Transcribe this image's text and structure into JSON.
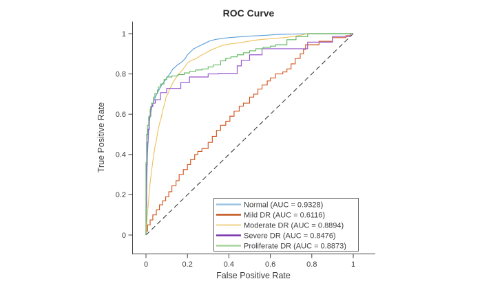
{
  "chart": {
    "title": "ROC Curve",
    "xlabel": "False Positive Rate",
    "ylabel": "True Positive Rate"
  },
  "axes": {
    "x_tick_labels": [
      "0",
      "0.2",
      "0.4",
      "0.6",
      "0.8",
      "1"
    ],
    "y_tick_labels": [
      "0",
      "0.2",
      "0.4",
      "0.6",
      "0.8",
      "1"
    ],
    "spine_color": "#404040",
    "tick_text_color": "#3d3d3d"
  },
  "legend": {
    "border_color": "#545454",
    "background": "#ffffff",
    "entries": [
      "Normal (AUC = 0.9328)",
      "Mild DR (AUC = 0.6116)",
      "Moderate DR (AUC = 0.8894)",
      "Severe DR (AUC = 0.8476)",
      "Proliferate DR (AUC = 0.8873)"
    ]
  },
  "chart_data": {
    "type": "line",
    "title": "ROC Curve",
    "xlabel": "False Positive Rate",
    "ylabel": "True Positive Rate",
    "xticks": [
      0,
      0.2,
      0.4,
      0.6,
      0.8,
      1
    ],
    "yticks": [
      0,
      0.2,
      0.4,
      0.6,
      0.8,
      1
    ],
    "xlim": [
      -0.063,
      1.107
    ],
    "ylim": [
      -0.096,
      1.06
    ],
    "grid": false,
    "legend_position": "inside lower right",
    "reference_line": {
      "name": "chance-diagonal",
      "from": [
        0,
        0
      ],
      "to": [
        1,
        1
      ],
      "style": "dashed",
      "color": "#3c3c3c"
    },
    "series": [
      {
        "name": "Normal",
        "auc": 0.9328,
        "legend_label": "Normal (AUC = 0.9328)",
        "color": "#5c9fd8",
        "legend_color": "#9dc3e1",
        "points": [
          [
            0,
            0
          ],
          [
            0.002,
            0.1
          ],
          [
            0.003,
            0.22
          ],
          [
            0.005,
            0.32
          ],
          [
            0.007,
            0.4
          ],
          [
            0.01,
            0.46
          ],
          [
            0.013,
            0.52
          ],
          [
            0.016,
            0.56
          ],
          [
            0.02,
            0.59
          ],
          [
            0.027,
            0.63
          ],
          [
            0.035,
            0.655
          ],
          [
            0.045,
            0.685
          ],
          [
            0.055,
            0.705
          ],
          [
            0.065,
            0.725
          ],
          [
            0.077,
            0.748
          ],
          [
            0.09,
            0.765
          ],
          [
            0.1,
            0.78
          ],
          [
            0.115,
            0.8
          ],
          [
            0.13,
            0.825
          ],
          [
            0.15,
            0.843
          ],
          [
            0.176,
            0.862
          ],
          [
            0.19,
            0.878
          ],
          [
            0.2,
            0.895
          ],
          [
            0.215,
            0.91
          ],
          [
            0.23,
            0.925
          ],
          [
            0.25,
            0.935
          ],
          [
            0.27,
            0.945
          ],
          [
            0.29,
            0.955
          ],
          [
            0.31,
            0.965
          ],
          [
            0.34,
            0.972
          ],
          [
            0.38,
            0.978
          ],
          [
            0.42,
            0.982
          ],
          [
            0.46,
            0.985
          ],
          [
            0.5,
            0.988
          ],
          [
            0.54,
            0.99
          ],
          [
            0.58,
            0.992
          ],
          [
            0.62,
            0.995
          ],
          [
            0.66,
            0.997
          ],
          [
            0.7,
            0.998
          ],
          [
            0.75,
            0.999
          ],
          [
            0.8,
            1.0
          ],
          [
            1,
            1
          ]
        ]
      },
      {
        "name": "Mild DR",
        "auc": 0.6116,
        "legend_label": "Mild DR (AUC = 0.6116)",
        "color": "#d2571e",
        "legend_color": "#c4551c",
        "points": [
          [
            0,
            0
          ],
          [
            0,
            0.02
          ],
          [
            0.008,
            0.02
          ],
          [
            0.008,
            0.05
          ],
          [
            0.02,
            0.05
          ],
          [
            0.02,
            0.075
          ],
          [
            0.033,
            0.075
          ],
          [
            0.033,
            0.1
          ],
          [
            0.05,
            0.1
          ],
          [
            0.05,
            0.125
          ],
          [
            0.065,
            0.125
          ],
          [
            0.065,
            0.15
          ],
          [
            0.08,
            0.15
          ],
          [
            0.08,
            0.17
          ],
          [
            0.095,
            0.17
          ],
          [
            0.095,
            0.19
          ],
          [
            0.11,
            0.19
          ],
          [
            0.11,
            0.215
          ],
          [
            0.125,
            0.215
          ],
          [
            0.125,
            0.245
          ],
          [
            0.145,
            0.245
          ],
          [
            0.145,
            0.27
          ],
          [
            0.16,
            0.27
          ],
          [
            0.16,
            0.3
          ],
          [
            0.18,
            0.3
          ],
          [
            0.18,
            0.325
          ],
          [
            0.2,
            0.325
          ],
          [
            0.2,
            0.35
          ],
          [
            0.215,
            0.35
          ],
          [
            0.215,
            0.375
          ],
          [
            0.235,
            0.375
          ],
          [
            0.235,
            0.4
          ],
          [
            0.25,
            0.4
          ],
          [
            0.25,
            0.415
          ],
          [
            0.27,
            0.415
          ],
          [
            0.27,
            0.43
          ],
          [
            0.3,
            0.43
          ],
          [
            0.3,
            0.46
          ],
          [
            0.32,
            0.46
          ],
          [
            0.32,
            0.49
          ],
          [
            0.34,
            0.49
          ],
          [
            0.34,
            0.52
          ],
          [
            0.36,
            0.52
          ],
          [
            0.36,
            0.545
          ],
          [
            0.385,
            0.545
          ],
          [
            0.385,
            0.565
          ],
          [
            0.405,
            0.565
          ],
          [
            0.405,
            0.59
          ],
          [
            0.425,
            0.59
          ],
          [
            0.425,
            0.615
          ],
          [
            0.45,
            0.615
          ],
          [
            0.45,
            0.64
          ],
          [
            0.47,
            0.64
          ],
          [
            0.47,
            0.655
          ],
          [
            0.5,
            0.655
          ],
          [
            0.5,
            0.685
          ],
          [
            0.52,
            0.685
          ],
          [
            0.52,
            0.7
          ],
          [
            0.54,
            0.7
          ],
          [
            0.54,
            0.725
          ],
          [
            0.56,
            0.725
          ],
          [
            0.56,
            0.745
          ],
          [
            0.585,
            0.745
          ],
          [
            0.585,
            0.765
          ],
          [
            0.6,
            0.765
          ],
          [
            0.6,
            0.78
          ],
          [
            0.625,
            0.78
          ],
          [
            0.625,
            0.8
          ],
          [
            0.66,
            0.8
          ],
          [
            0.66,
            0.81
          ],
          [
            0.68,
            0.81
          ],
          [
            0.68,
            0.825
          ],
          [
            0.7,
            0.825
          ],
          [
            0.7,
            0.85
          ],
          [
            0.72,
            0.85
          ],
          [
            0.72,
            0.877
          ],
          [
            0.744,
            0.877
          ],
          [
            0.744,
            0.9
          ],
          [
            0.76,
            0.9
          ],
          [
            0.76,
            0.922
          ],
          [
            0.77,
            0.922
          ],
          [
            0.77,
            0.945
          ],
          [
            0.835,
            0.945
          ],
          [
            0.835,
            0.962
          ],
          [
            0.9,
            0.962
          ],
          [
            0.9,
            0.98
          ],
          [
            0.965,
            0.98
          ],
          [
            0.965,
            0.99
          ],
          [
            0.985,
            0.99
          ],
          [
            0.985,
            1.0
          ],
          [
            1,
            1
          ]
        ]
      },
      {
        "name": "Moderate DR",
        "auc": 0.8894,
        "legend_label": "Moderate DR (AUC = 0.8894)",
        "color": "#eec25f",
        "legend_color": "#f2dca0",
        "points": [
          [
            0,
            0
          ],
          [
            0.003,
            0.03
          ],
          [
            0.006,
            0.09
          ],
          [
            0.01,
            0.14
          ],
          [
            0.015,
            0.2
          ],
          [
            0.02,
            0.26
          ],
          [
            0.027,
            0.32
          ],
          [
            0.035,
            0.38
          ],
          [
            0.042,
            0.43
          ],
          [
            0.05,
            0.47
          ],
          [
            0.058,
            0.52
          ],
          [
            0.066,
            0.555
          ],
          [
            0.074,
            0.585
          ],
          [
            0.082,
            0.625
          ],
          [
            0.09,
            0.65
          ],
          [
            0.097,
            0.685
          ],
          [
            0.105,
            0.7
          ],
          [
            0.115,
            0.725
          ],
          [
            0.124,
            0.745
          ],
          [
            0.135,
            0.765
          ],
          [
            0.15,
            0.79
          ],
          [
            0.163,
            0.805
          ],
          [
            0.18,
            0.825
          ],
          [
            0.2,
            0.855
          ],
          [
            0.22,
            0.868
          ],
          [
            0.24,
            0.875
          ],
          [
            0.27,
            0.895
          ],
          [
            0.29,
            0.905
          ],
          [
            0.31,
            0.917
          ],
          [
            0.34,
            0.93
          ],
          [
            0.37,
            0.942
          ],
          [
            0.4,
            0.948
          ],
          [
            0.43,
            0.952
          ],
          [
            0.47,
            0.958
          ],
          [
            0.5,
            0.963
          ],
          [
            0.53,
            0.968
          ],
          [
            0.57,
            0.972
          ],
          [
            0.6,
            0.975
          ],
          [
            0.64,
            0.978
          ],
          [
            0.68,
            0.982
          ],
          [
            0.72,
            0.988
          ],
          [
            0.75,
            0.993
          ],
          [
            0.78,
            1.0
          ],
          [
            1,
            1
          ]
        ]
      },
      {
        "name": "Severe DR",
        "auc": 0.8476,
        "legend_label": "Severe DR (AUC = 0.8476)",
        "color": "#9452cc",
        "legend_color": "#7631ac",
        "points": [
          [
            0,
            0
          ],
          [
            0,
            0.14
          ],
          [
            0.003,
            0.14
          ],
          [
            0.003,
            0.35
          ],
          [
            0.006,
            0.35
          ],
          [
            0.006,
            0.46
          ],
          [
            0.01,
            0.46
          ],
          [
            0.01,
            0.525
          ],
          [
            0.016,
            0.525
          ],
          [
            0.016,
            0.59
          ],
          [
            0.023,
            0.59
          ],
          [
            0.023,
            0.638
          ],
          [
            0.033,
            0.638
          ],
          [
            0.033,
            0.655
          ],
          [
            0.045,
            0.655
          ],
          [
            0.045,
            0.672
          ],
          [
            0.07,
            0.672
          ],
          [
            0.07,
            0.707
          ],
          [
            0.1,
            0.707
          ],
          [
            0.1,
            0.728
          ],
          [
            0.168,
            0.728
          ],
          [
            0.168,
            0.757
          ],
          [
            0.21,
            0.757
          ],
          [
            0.21,
            0.785
          ],
          [
            0.3,
            0.785
          ],
          [
            0.3,
            0.8
          ],
          [
            0.35,
            0.8
          ],
          [
            0.35,
            0.802
          ],
          [
            0.44,
            0.802
          ],
          [
            0.44,
            0.84
          ],
          [
            0.46,
            0.84
          ],
          [
            0.46,
            0.868
          ],
          [
            0.5,
            0.868
          ],
          [
            0.5,
            0.895
          ],
          [
            0.56,
            0.895
          ],
          [
            0.56,
            0.925
          ],
          [
            0.78,
            0.925
          ],
          [
            0.78,
            0.958
          ],
          [
            0.9,
            0.958
          ],
          [
            0.9,
            0.986
          ],
          [
            0.985,
            0.986
          ],
          [
            0.985,
            1.0
          ],
          [
            1,
            1
          ]
        ]
      },
      {
        "name": "Proliferate DR",
        "auc": 0.8873,
        "legend_label": "Proliferate DR (AUC = 0.8873)",
        "color": "#64b964",
        "legend_color": "#a6d49a",
        "points": [
          [
            0,
            0
          ],
          [
            0,
            0.36
          ],
          [
            0.003,
            0.36
          ],
          [
            0.003,
            0.5
          ],
          [
            0.007,
            0.5
          ],
          [
            0.007,
            0.545
          ],
          [
            0.013,
            0.545
          ],
          [
            0.013,
            0.587
          ],
          [
            0.02,
            0.587
          ],
          [
            0.02,
            0.625
          ],
          [
            0.027,
            0.625
          ],
          [
            0.027,
            0.655
          ],
          [
            0.036,
            0.655
          ],
          [
            0.036,
            0.685
          ],
          [
            0.043,
            0.685
          ],
          [
            0.043,
            0.703
          ],
          [
            0.055,
            0.703
          ],
          [
            0.055,
            0.72
          ],
          [
            0.06,
            0.72
          ],
          [
            0.06,
            0.735
          ],
          [
            0.07,
            0.735
          ],
          [
            0.07,
            0.75
          ],
          [
            0.087,
            0.75
          ],
          [
            0.087,
            0.772
          ],
          [
            0.1,
            0.772
          ],
          [
            0.1,
            0.785
          ],
          [
            0.125,
            0.785
          ],
          [
            0.125,
            0.79
          ],
          [
            0.155,
            0.79
          ],
          [
            0.155,
            0.797
          ],
          [
            0.185,
            0.797
          ],
          [
            0.185,
            0.805
          ],
          [
            0.21,
            0.805
          ],
          [
            0.21,
            0.812
          ],
          [
            0.24,
            0.812
          ],
          [
            0.24,
            0.82
          ],
          [
            0.27,
            0.82
          ],
          [
            0.27,
            0.825
          ],
          [
            0.3,
            0.825
          ],
          [
            0.3,
            0.835
          ],
          [
            0.325,
            0.835
          ],
          [
            0.325,
            0.845
          ],
          [
            0.36,
            0.845
          ],
          [
            0.36,
            0.865
          ],
          [
            0.385,
            0.865
          ],
          [
            0.385,
            0.878
          ],
          [
            0.41,
            0.878
          ],
          [
            0.41,
            0.885
          ],
          [
            0.44,
            0.885
          ],
          [
            0.44,
            0.895
          ],
          [
            0.47,
            0.895
          ],
          [
            0.47,
            0.905
          ],
          [
            0.5,
            0.905
          ],
          [
            0.5,
            0.915
          ],
          [
            0.53,
            0.915
          ],
          [
            0.53,
            0.925
          ],
          [
            0.565,
            0.925
          ],
          [
            0.565,
            0.932
          ],
          [
            0.6,
            0.932
          ],
          [
            0.6,
            0.938
          ],
          [
            0.625,
            0.938
          ],
          [
            0.625,
            0.945
          ],
          [
            0.68,
            0.945
          ],
          [
            0.68,
            0.97
          ],
          [
            0.724,
            0.97
          ],
          [
            0.724,
            0.985
          ],
          [
            0.78,
            0.985
          ],
          [
            0.78,
            1.0
          ],
          [
            1,
            1
          ]
        ]
      }
    ]
  }
}
